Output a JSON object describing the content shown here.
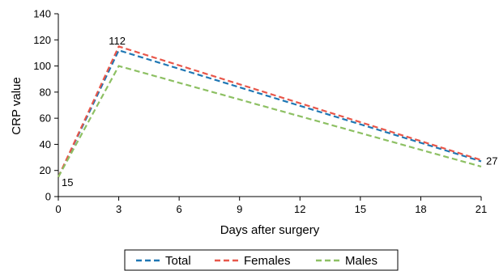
{
  "chart_data": {
    "type": "line",
    "xlabel": "Days after surgery",
    "ylabel": "CRP value",
    "xlim": [
      0,
      21
    ],
    "ylim": [
      0,
      140
    ],
    "xticks": [
      0,
      3,
      6,
      9,
      12,
      15,
      18,
      21
    ],
    "yticks": [
      0,
      20,
      40,
      60,
      80,
      100,
      120,
      140
    ],
    "grid": false,
    "legend_position": "bottom",
    "series": [
      {
        "name": "Total",
        "color": "#1f77b4",
        "dash": "dashed",
        "x": [
          0,
          3,
          21
        ],
        "y": [
          15,
          112,
          27
        ]
      },
      {
        "name": "Females",
        "color": "#e8574a",
        "dash": "dashed",
        "x": [
          0,
          3,
          21
        ],
        "y": [
          15,
          115,
          28
        ]
      },
      {
        "name": "Males",
        "color": "#8dc063",
        "dash": "dashed",
        "x": [
          0,
          3,
          21
        ],
        "y": [
          15,
          100,
          23
        ]
      }
    ],
    "data_labels": [
      {
        "x": 0,
        "y": 15,
        "text": "15"
      },
      {
        "x": 3,
        "y": 112,
        "text": "112"
      },
      {
        "x": 21,
        "y": 27,
        "text": "27"
      }
    ]
  }
}
